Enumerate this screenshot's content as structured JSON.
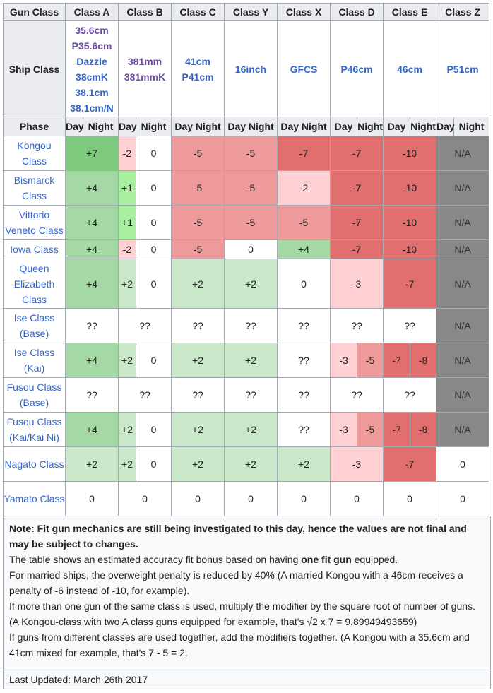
{
  "header": {
    "gun_class_label": "Gun Class",
    "classes": [
      "Class A",
      "Class B",
      "Class C",
      "Class Y",
      "Class X",
      "Class D",
      "Class E",
      "Class Z"
    ]
  },
  "guns": {
    "label": "Ship Class",
    "A": [
      "35.6cm",
      "P35.6cm",
      "Dazzle",
      "38cmK",
      "38.1cm",
      "38.1cm/N"
    ],
    "B": [
      "381mm",
      "381mmK"
    ],
    "C": [
      "41cm",
      "P41cm"
    ],
    "Y": [
      "16inch"
    ],
    "X": [
      "GFCS"
    ],
    "D": [
      "P46cm"
    ],
    "E": [
      "46cm"
    ],
    "Z": [
      "P51cm"
    ]
  },
  "phase": {
    "label": "Phase",
    "day": "Day",
    "night": "Night"
  },
  "ships": [
    {
      "name": "Kongou Class",
      "a_day": "+7",
      "b_day": "-2",
      "b_night": "0",
      "c": "-5",
      "y": "-5",
      "x": "-7",
      "d": "-7",
      "e": "-10",
      "z": "N/A"
    },
    {
      "name": "Bismarck Class",
      "a_day": "+4",
      "b_day": "+1",
      "b_night": "0",
      "c": "-5",
      "y": "-5",
      "x": "-2",
      "d": "-7",
      "e": "-10",
      "z": "N/A"
    },
    {
      "name": "Vittorio Veneto Class",
      "a_day": "+4",
      "b_day": "+1",
      "b_night": "0",
      "c": "-5",
      "y": "-5",
      "x": "-5",
      "d": "-7",
      "e": "-10",
      "z": "N/A"
    },
    {
      "name": "Iowa Class",
      "a_day": "+4",
      "b_day": "-2",
      "b_night": "0",
      "c": "-5",
      "y": "0",
      "x": "+4",
      "d": "-7",
      "e": "-10",
      "z": "N/A"
    },
    {
      "name": "Queen Elizabeth Class",
      "a_day": "+4",
      "b_day": "+2",
      "b_night": "0",
      "c": "+2",
      "y": "+2",
      "x": "0",
      "d": "-3",
      "e": "-7",
      "z": "N/A"
    },
    {
      "name": "Ise Class (Base)",
      "a_day": "??",
      "b": "??",
      "c": "??",
      "y": "??",
      "x": "??",
      "d": "??",
      "e": "??",
      "z": "N/A"
    },
    {
      "name": "Ise Class (Kai)",
      "a_day": "+4",
      "b_day": "+2",
      "b_night": "0",
      "c": "+2",
      "y": "+2",
      "x": "??",
      "d_day": "-3",
      "d_night": "-5",
      "e_day": "-7",
      "e_night": "-8",
      "z": "N/A"
    },
    {
      "name": "Fusou Class (Base)",
      "a_day": "??",
      "b": "??",
      "c": "??",
      "y": "??",
      "x": "??",
      "d": "??",
      "e": "??",
      "z": "N/A"
    },
    {
      "name": "Fusou Class (Kai/Kai Ni)",
      "a_day": "+4",
      "b_day": "+2",
      "b_night": "0",
      "c": "+2",
      "y": "+2",
      "x": "??",
      "d_day": "-3",
      "d_night": "-5",
      "e_day": "-7",
      "e_night": "-8",
      "z": "N/A"
    },
    {
      "name": "Nagato Class",
      "a_day": "+2",
      "b_day": "+2",
      "b_night": "0",
      "c": "+2",
      "y": "+2",
      "x": "+2",
      "d": "-3",
      "e": "-7",
      "z": "0"
    },
    {
      "name": "Yamato Class",
      "a_day": "0",
      "b": "0",
      "c": "0",
      "y": "0",
      "x": "0",
      "d": "0",
      "e": "0",
      "z": "0"
    }
  ],
  "notes": {
    "bold": "Note: Fit gun mechanics are still being investigated to this day, hence the values are not final and may be subject to changes.",
    "l1_pre": "The table shows an estimated accuracy fit bonus based on having ",
    "l1_bold": "one fit gun",
    "l1_post": " equipped.",
    "l2": "For married ships, the overweight penalty is reduced by 40% (A married Kongou with a 46cm receives a penalty of -6 instead of -10, for example).",
    "l3": "If more than one gun of the same class is used, multiply the modifier by the square root of number of guns. (A Kongou-class with two A class guns equipped for example, that's √2 x 7 = 9.89949493659)",
    "l4": "If guns from different classes are used together, add the modifiers together. (A Kongou with a 35.6cm and 41cm mixed for example, that's 7 - 5 = 2."
  },
  "footer": {
    "updated": "Last Updated: March 26th 2017"
  }
}
